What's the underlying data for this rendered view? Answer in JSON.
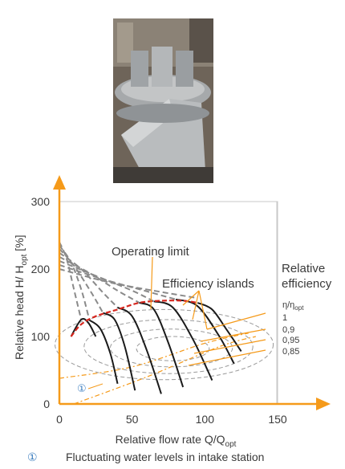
{
  "photo": {
    "description_icon": "impeller-photo",
    "colors": {
      "bg": "#6a6158",
      "metal": "#b9bcbf",
      "dark": "#3c3a38"
    }
  },
  "chart_data": {
    "type": "line",
    "xlabel": "Relative flow rate Q/Q",
    "xlabel_sub": "opt",
    "ylabel": "Relative head H/ H",
    "ylabel_sub": "opt",
    "ylabel_unit": " [%]",
    "xlim": [
      0,
      150
    ],
    "ylim": [
      0,
      300
    ],
    "x_ticks": [
      "0",
      "50",
      "100",
      "150"
    ],
    "y_ticks": [
      "0",
      "100",
      "200",
      "300"
    ],
    "annotations": {
      "operating_limit": "Operating limit",
      "efficiency_islands": "Efficiency islands",
      "relative_efficiency_line1": "Relative",
      "relative_efficiency_line2": "efficiency",
      "eta_ratio": "η/η",
      "eta_ratio_sub": "opt",
      "marker": "①"
    },
    "efficiency_levels": [
      "1",
      "0,9",
      "0,95",
      "0,85"
    ],
    "blade_angle_curves": [
      {
        "dashed": [
          [
            0,
            240
          ],
          [
            5,
            215
          ],
          [
            10,
            170
          ],
          [
            15,
            125
          ]
        ],
        "solid": [
          [
            8,
            100
          ],
          [
            15,
            125
          ],
          [
            20,
            120
          ],
          [
            25,
            100
          ]
        ]
      },
      {
        "dashed": [
          [
            0,
            235
          ],
          [
            8,
            210
          ],
          [
            15,
            170
          ],
          [
            20,
            130
          ]
        ],
        "solid": [
          [
            20,
            125
          ],
          [
            28,
            112
          ],
          [
            35,
            75
          ],
          [
            40,
            30
          ]
        ]
      },
      {
        "dashed": [
          [
            0,
            230
          ],
          [
            10,
            205
          ],
          [
            22,
            165
          ],
          [
            30,
            135
          ]
        ],
        "solid": [
          [
            30,
            135
          ],
          [
            38,
            125
          ],
          [
            45,
            85
          ],
          [
            52,
            20
          ]
        ]
      },
      {
        "dashed": [
          [
            0,
            224
          ],
          [
            15,
            200
          ],
          [
            30,
            165
          ],
          [
            40,
            143
          ]
        ],
        "solid": [
          [
            40,
            143
          ],
          [
            50,
            130
          ],
          [
            60,
            80
          ],
          [
            70,
            15
          ]
        ]
      },
      {
        "dashed": [
          [
            0,
            218
          ],
          [
            20,
            195
          ],
          [
            40,
            168
          ],
          [
            55,
            150
          ]
        ],
        "solid": [
          [
            55,
            150
          ],
          [
            65,
            140
          ],
          [
            75,
            90
          ],
          [
            85,
            25
          ]
        ]
      },
      {
        "dashed": [
          [
            0,
            212
          ],
          [
            25,
            190
          ],
          [
            50,
            168
          ],
          [
            65,
            152
          ]
        ],
        "solid": [
          [
            65,
            152
          ],
          [
            78,
            143
          ],
          [
            92,
            95
          ],
          [
            105,
            35
          ]
        ]
      },
      {
        "dashed": [
          [
            0,
            206
          ],
          [
            30,
            185
          ],
          [
            60,
            167
          ],
          [
            80,
            155
          ]
        ],
        "solid": [
          [
            80,
            155
          ],
          [
            95,
            145
          ],
          [
            110,
            100
          ],
          [
            120,
            60
          ]
        ]
      },
      {
        "dashed": [
          [
            0,
            200
          ],
          [
            35,
            180
          ],
          [
            70,
            166
          ],
          [
            95,
            157
          ]
        ],
        "solid": [
          [
            95,
            150
          ],
          [
            105,
            140
          ],
          [
            115,
            110
          ],
          [
            125,
            78
          ]
        ]
      }
    ],
    "operating_limit_curve": [
      [
        8,
        100
      ],
      [
        15,
        118
      ],
      [
        25,
        130
      ],
      [
        40,
        140
      ],
      [
        55,
        150
      ],
      [
        70,
        153
      ],
      [
        85,
        153
      ],
      [
        95,
        150
      ]
    ],
    "efficiency_islands": [
      {
        "level": "1",
        "center": [
          78,
          82
        ],
        "rx": 25,
        "ry": 18
      },
      {
        "level": "0,95",
        "center": [
          77,
          83
        ],
        "rx": 42,
        "ry": 28
      },
      {
        "level": "0,9",
        "center": [
          75,
          85
        ],
        "rx": 58,
        "ry": 40
      },
      {
        "level": "0,85",
        "center": [
          72,
          88
        ],
        "rx": 75,
        "ry": 52
      }
    ],
    "intake_lines": [
      {
        "points": [
          [
            0,
            38
          ],
          [
            50,
            55
          ],
          [
            100,
            90
          ],
          [
            130,
            105
          ]
        ]
      },
      {
        "points": [
          [
            10,
            0
          ],
          [
            60,
            40
          ],
          [
            110,
            85
          ],
          [
            135,
            100
          ]
        ]
      }
    ],
    "colors": {
      "axis": "#f59a1a",
      "curves": "#1a1a1a",
      "dashed": "#8a8a8a",
      "limit": "#d6261e",
      "leader": "#f59a1a",
      "island": "#9a9a9a",
      "marker": "#3d7fc0"
    }
  },
  "footnote": {
    "marker": "①",
    "text": "Fluctuating water levels in intake station"
  }
}
